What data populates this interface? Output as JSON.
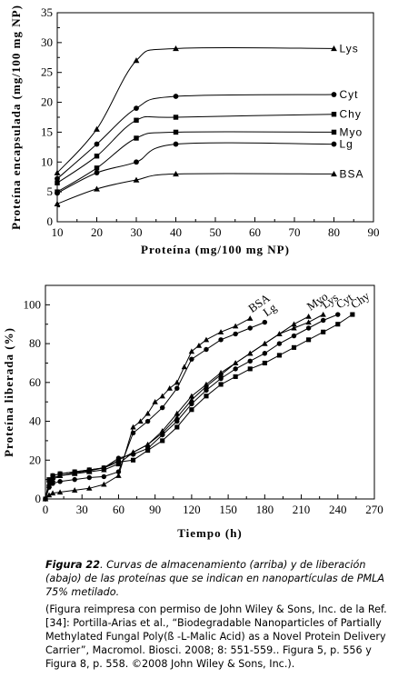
{
  "chart_data": [
    {
      "type": "line",
      "title": "",
      "xlabel": "Proteína (mg/100 mg NP)",
      "ylabel": "Proteína encapsulada (mg/100 mg NP)",
      "xlim": [
        10,
        90
      ],
      "ylim": [
        0,
        35
      ],
      "xticks": [
        "10",
        "20",
        "30",
        "40",
        "50",
        "60",
        "70",
        "80",
        "90"
      ],
      "yticks": [
        "0",
        "5",
        "10",
        "15",
        "20",
        "25",
        "30",
        "35"
      ],
      "grid": false,
      "series": [
        {
          "name": "Lys",
          "marker": "triangle",
          "x": [
            10,
            20,
            30,
            40,
            80
          ],
          "y": [
            8.2,
            15.5,
            27,
            29,
            29
          ]
        },
        {
          "name": "Cyt",
          "marker": "circle",
          "x": [
            10,
            20,
            30,
            40,
            80
          ],
          "y": [
            7.2,
            13,
            19,
            21,
            21.3
          ]
        },
        {
          "name": "Chy",
          "marker": "square",
          "x": [
            10,
            20,
            30,
            40,
            80
          ],
          "y": [
            6.5,
            11,
            17,
            17.5,
            18
          ]
        },
        {
          "name": "Myo",
          "marker": "square",
          "x": [
            10,
            20,
            30,
            40,
            80
          ],
          "y": [
            5,
            9,
            14,
            15,
            15
          ]
        },
        {
          "name": "Lg",
          "marker": "circle",
          "x": [
            10,
            20,
            30,
            40,
            80
          ],
          "y": [
            4.8,
            8.2,
            10,
            13,
            13
          ]
        },
        {
          "name": "BSA",
          "marker": "triangle",
          "x": [
            10,
            20,
            30,
            40,
            80
          ],
          "y": [
            3,
            5.5,
            7,
            8,
            8
          ]
        }
      ]
    },
    {
      "type": "line",
      "title": "",
      "xlabel": "Tiempo (h)",
      "ylabel": "Proteína liberada (%)",
      "xlim": [
        0,
        270
      ],
      "ylim": [
        0,
        110
      ],
      "xticks": [
        "0",
        "30",
        "60",
        "90",
        "120",
        "150",
        "180",
        "210",
        "240",
        "270"
      ],
      "yticks": [
        "0",
        "20",
        "40",
        "60",
        "80",
        "100"
      ],
      "grid": false,
      "series": [
        {
          "name": "BSA",
          "marker": "triangle",
          "x": [
            0,
            3,
            6,
            12,
            24,
            36,
            48,
            60,
            72,
            78,
            84,
            90,
            96,
            102,
            108,
            114,
            120,
            126,
            132,
            144,
            156,
            168
          ],
          "y": [
            0,
            2,
            3,
            3.5,
            4.5,
            5.5,
            7.5,
            12,
            37,
            40,
            44,
            50,
            53,
            57,
            60,
            68,
            76,
            79,
            82,
            86,
            89,
            93
          ]
        },
        {
          "name": "Lg",
          "marker": "circle",
          "x": [
            0,
            3,
            6,
            12,
            24,
            36,
            48,
            60,
            72,
            84,
            96,
            108,
            120,
            132,
            144,
            156,
            168,
            180
          ],
          "y": [
            0,
            6,
            8,
            9,
            10,
            11,
            11.5,
            14,
            34,
            40,
            47,
            57,
            72,
            77,
            82,
            85,
            88,
            91
          ]
        },
        {
          "name": "Myo",
          "marker": "triangle",
          "x": [
            0,
            3,
            6,
            12,
            24,
            36,
            48,
            60,
            72,
            84,
            96,
            108,
            120,
            132,
            144,
            156,
            168,
            180,
            192,
            204,
            216
          ],
          "y": [
            0,
            7,
            10,
            12,
            13,
            14,
            15,
            18,
            24,
            28,
            35,
            44,
            53,
            59,
            65,
            70,
            75,
            80,
            85,
            90,
            94
          ]
        },
        {
          "name": "Lys",
          "marker": "triangle",
          "x": [
            0,
            3,
            6,
            12,
            24,
            36,
            48,
            60,
            72,
            84,
            96,
            108,
            120,
            132,
            144,
            156,
            168,
            180,
            192,
            204,
            216,
            228
          ],
          "y": [
            0,
            8,
            11,
            12,
            13.5,
            14.5,
            16,
            20,
            24,
            28,
            34,
            42,
            51,
            58,
            64,
            70,
            75,
            80,
            85,
            88,
            91,
            95
          ]
        },
        {
          "name": "Cyt",
          "marker": "circle",
          "x": [
            0,
            3,
            6,
            12,
            24,
            36,
            48,
            60,
            72,
            84,
            96,
            108,
            120,
            132,
            144,
            156,
            168,
            180,
            192,
            204,
            216,
            228,
            240
          ],
          "y": [
            0,
            9,
            12,
            13,
            14,
            15,
            16,
            21,
            23,
            26,
            33,
            40,
            49,
            56,
            62,
            67,
            71,
            75,
            80,
            84,
            88,
            92,
            95
          ]
        },
        {
          "name": "Chy",
          "marker": "square",
          "x": [
            0,
            3,
            6,
            12,
            24,
            36,
            48,
            60,
            72,
            84,
            96,
            108,
            120,
            132,
            144,
            156,
            168,
            180,
            192,
            204,
            216,
            228,
            240,
            252
          ],
          "y": [
            0,
            10,
            12,
            13,
            14,
            15,
            16,
            19,
            20,
            25,
            30,
            37,
            46,
            53,
            59,
            63,
            67,
            70,
            74,
            78,
            82,
            86,
            90,
            95
          ]
        }
      ]
    }
  ],
  "caption": {
    "fig_label": "Figura 22",
    "fig_text": ". Curvas de almacenamiento (arriba) y de liberación (abajo) de las proteínas que se indican en nanopartículas de PMLA 75% metilado.",
    "credit": "(Figura reimpresa con permiso de John Wiley & Sons, Inc. de la Ref. [34]: Portilla-Arias et al., “Biodegradable Nanoparticles of Partially Methylated Fungal Poly(ß -L-Malic Acid) as a Novel Protein Delivery Carrier”, Macromol. Biosci. 2008; 8: 551-559.. Figura 5, p. 556 y Figura 8, p. 558. ©2008 John Wiley & Sons, Inc.)."
  }
}
